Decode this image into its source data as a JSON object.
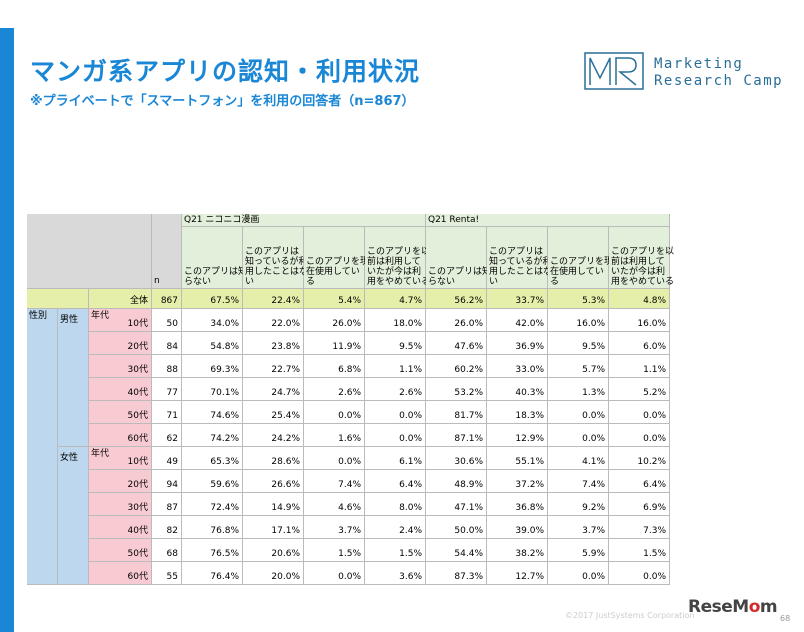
{
  "slide": {
    "title": "マンガ系アプリの認知・利用状況",
    "subtitle": "※プライベートで「スマートフォン」を利用の回答者（n=867）"
  },
  "logo": {
    "line1": "Marketing",
    "line2": "Research Camp",
    "letters": "MR"
  },
  "table": {
    "n_label": "n",
    "group1_title": "Q21 ニコニコ漫画",
    "group2_title": "Q21 Renta!",
    "col_headers": [
      "このアプリは知らない",
      "このアプリは知っているが利用したことはない",
      "このアプリを現在使用している",
      "このアプリを以前は利用していたが今は利用をやめている"
    ],
    "col_headers_lines": [
      [
        "このアプリは知",
        "らない"
      ],
      [
        "このアプリは",
        "知っているが利",
        "用したことはな",
        "い"
      ],
      [
        "このアプリを現",
        "在使用してい",
        "る"
      ],
      [
        "このアプリを以",
        "前は利用して",
        "いたが今は利",
        "用をやめている"
      ]
    ],
    "total_label": "全体",
    "total": {
      "n": "867",
      "vals": [
        "67.5%",
        "22.4%",
        "5.4%",
        "4.7%",
        "56.2%",
        "33.7%",
        "5.3%",
        "4.8%"
      ]
    },
    "sex_label": "性別",
    "age_label": "年代",
    "groups": [
      {
        "sex": "男性",
        "rows": [
          {
            "age": "10代",
            "n": "50",
            "vals": [
              "34.0%",
              "22.0%",
              "26.0%",
              "18.0%",
              "26.0%",
              "42.0%",
              "16.0%",
              "16.0%"
            ]
          },
          {
            "age": "20代",
            "n": "84",
            "vals": [
              "54.8%",
              "23.8%",
              "11.9%",
              "9.5%",
              "47.6%",
              "36.9%",
              "9.5%",
              "6.0%"
            ]
          },
          {
            "age": "30代",
            "n": "88",
            "vals": [
              "69.3%",
              "22.7%",
              "6.8%",
              "1.1%",
              "60.2%",
              "33.0%",
              "5.7%",
              "1.1%"
            ]
          },
          {
            "age": "40代",
            "n": "77",
            "vals": [
              "70.1%",
              "24.7%",
              "2.6%",
              "2.6%",
              "53.2%",
              "40.3%",
              "1.3%",
              "5.2%"
            ]
          },
          {
            "age": "50代",
            "n": "71",
            "vals": [
              "74.6%",
              "25.4%",
              "0.0%",
              "0.0%",
              "81.7%",
              "18.3%",
              "0.0%",
              "0.0%"
            ]
          },
          {
            "age": "60代",
            "n": "62",
            "vals": [
              "74.2%",
              "24.2%",
              "1.6%",
              "0.0%",
              "87.1%",
              "12.9%",
              "0.0%",
              "0.0%"
            ]
          }
        ]
      },
      {
        "sex": "女性",
        "rows": [
          {
            "age": "10代",
            "n": "49",
            "vals": [
              "65.3%",
              "28.6%",
              "0.0%",
              "6.1%",
              "30.6%",
              "55.1%",
              "4.1%",
              "10.2%"
            ]
          },
          {
            "age": "20代",
            "n": "94",
            "vals": [
              "59.6%",
              "26.6%",
              "7.4%",
              "6.4%",
              "48.9%",
              "37.2%",
              "7.4%",
              "6.4%"
            ]
          },
          {
            "age": "30代",
            "n": "87",
            "vals": [
              "72.4%",
              "14.9%",
              "4.6%",
              "8.0%",
              "47.1%",
              "36.8%",
              "9.2%",
              "6.9%"
            ]
          },
          {
            "age": "40代",
            "n": "82",
            "vals": [
              "76.8%",
              "17.1%",
              "3.7%",
              "2.4%",
              "50.0%",
              "39.0%",
              "3.7%",
              "7.3%"
            ]
          },
          {
            "age": "50代",
            "n": "68",
            "vals": [
              "76.5%",
              "20.6%",
              "1.5%",
              "1.5%",
              "54.4%",
              "38.2%",
              "5.9%",
              "1.5%"
            ]
          },
          {
            "age": "60代",
            "n": "55",
            "vals": [
              "76.4%",
              "20.0%",
              "0.0%",
              "3.6%",
              "87.3%",
              "12.7%",
              "0.0%",
              "0.0%"
            ]
          }
        ]
      }
    ]
  },
  "footer": {
    "copyright": "©2017 JustSystems Corporation",
    "page": "68",
    "watermark_main": "ReseM",
    "watermark_o": "o",
    "watermark_end": "m"
  },
  "colors": {
    "accent": "#1a86d6",
    "header_green": "#e2efda",
    "total_yellow": "#e6efaa",
    "sex_blue": "#bdd7ee",
    "age_pink": "#f8cbd2",
    "corner_gray": "#d9d9d9"
  }
}
